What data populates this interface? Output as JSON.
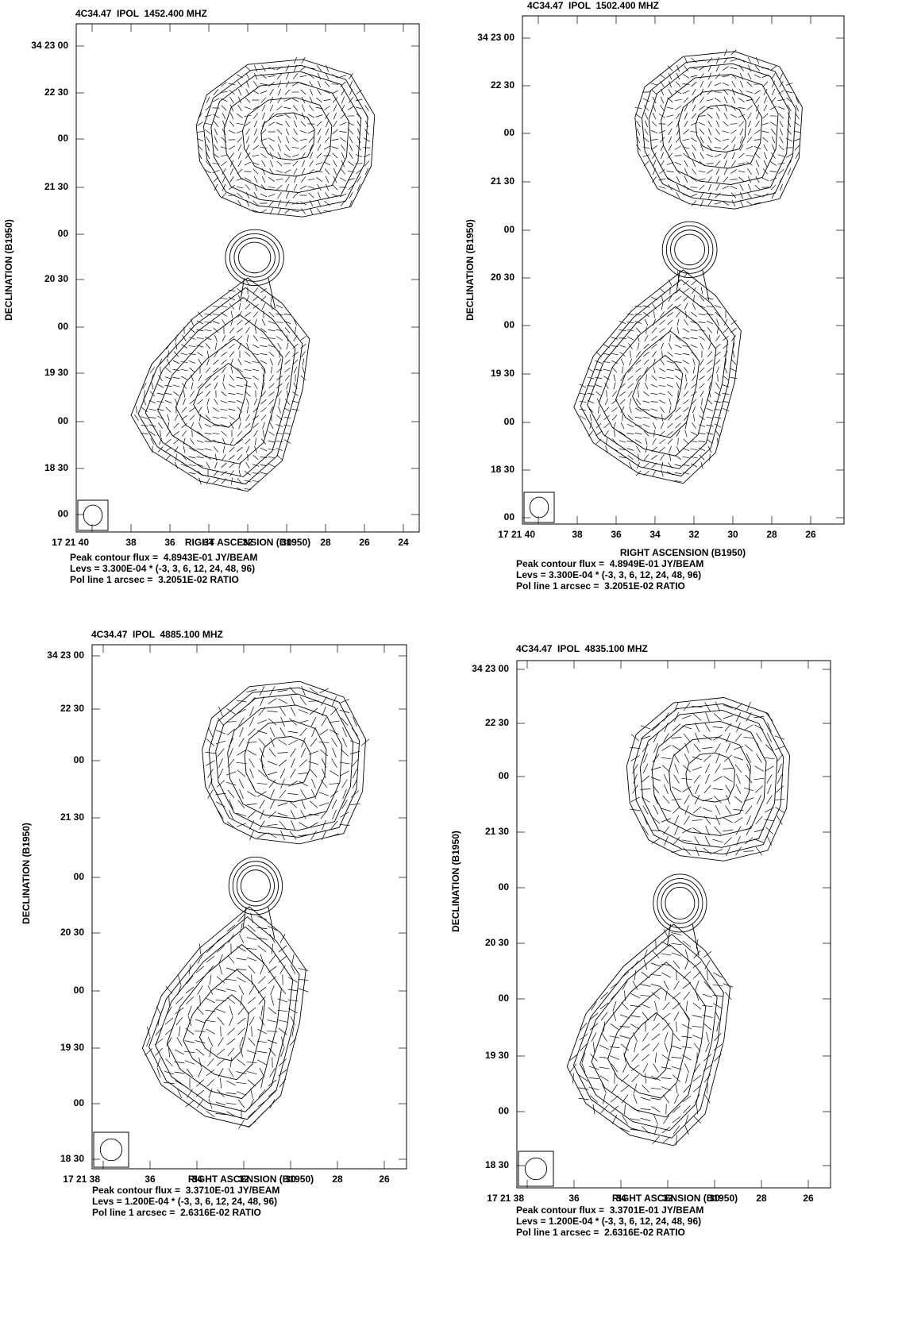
{
  "panels": [
    {
      "title": "4C34.47  IPOL  1452.400 MHZ",
      "yticks": [
        "34 23 00",
        "22 30",
        "00",
        "21 30",
        "00",
        "20 30",
        "00",
        "19 30",
        "00",
        "18 30",
        "00"
      ],
      "xticks": [
        "17 21 40",
        "38",
        "36",
        "34",
        "32",
        "30",
        "28",
        "26",
        "24"
      ],
      "xlabel": "RIGHT ASCENSION (B1950)",
      "ylabel": "DECLINATION (B1950)",
      "captions": [
        "Peak contour flux =  4.8943E-01 JY/BEAM",
        "Levs = 3.300E-04 * (-3, 3, 6, 12, 24, 48, 96)",
        "Pol line 1 arcsec =  3.2051E-02 RATIO"
      ]
    },
    {
      "title": "4C34.47  IPOL  1502.400 MHZ",
      "yticks": [
        "34 23 00",
        "22 30",
        "00",
        "21 30",
        "00",
        "20 30",
        "00",
        "19 30",
        "00",
        "18 30",
        "00"
      ],
      "xticks": [
        "17 21 40",
        "38",
        "36",
        "34",
        "32",
        "30",
        "28",
        "26"
      ],
      "xlabel": "RIGHT ASCENSION (B1950)",
      "ylabel": "DECLINATION (B1950)",
      "captions": [
        "Peak contour flux =  4.8949E-01 JY/BEAM",
        "Levs = 3.300E-04 * (-3, 3, 6, 12, 24, 48, 96)",
        "Pol line 1 arcsec =  3.2051E-02 RATIO"
      ]
    },
    {
      "title": "4C34.47  IPOL  4885.100 MHZ",
      "yticks": [
        "34 23 00",
        "22 30",
        "00",
        "21 30",
        "00",
        "20 30",
        "00",
        "19 30",
        "00",
        "18 30"
      ],
      "xticks": [
        "17 21 38",
        "36",
        "34",
        "32",
        "30",
        "28",
        "26"
      ],
      "xlabel": "RIGHT ASCENSION (B1950)",
      "ylabel": "DECLINATION (B1950)",
      "captions": [
        "Peak contour flux =  3.3710E-01 JY/BEAM",
        "Levs = 1.200E-04 * (-3, 3, 6, 12, 24, 48, 96)",
        "Pol line 1 arcsec =  2.6316E-02 RATIO"
      ]
    },
    {
      "title": "4C34.47  IPOL  4835.100 MHZ",
      "yticks": [
        "34 23 00",
        "22 30",
        "00",
        "21 30",
        "00",
        "20 30",
        "00",
        "19 30",
        "00",
        "18 30"
      ],
      "xticks": [
        "17 21 38",
        "36",
        "34",
        "32",
        "30",
        "28",
        "26"
      ],
      "xlabel": "RIGHT ASCENSION (B1950)",
      "ylabel": "DECLINATION (B1950)",
      "captions": [
        "Peak contour flux =  3.3701E-01 JY/BEAM",
        "Levs = 1.200E-04 * (-3, 3, 6, 12, 24, 48, 96)",
        "Pol line 1 arcsec =  2.6316E-02 RATIO"
      ]
    }
  ]
}
